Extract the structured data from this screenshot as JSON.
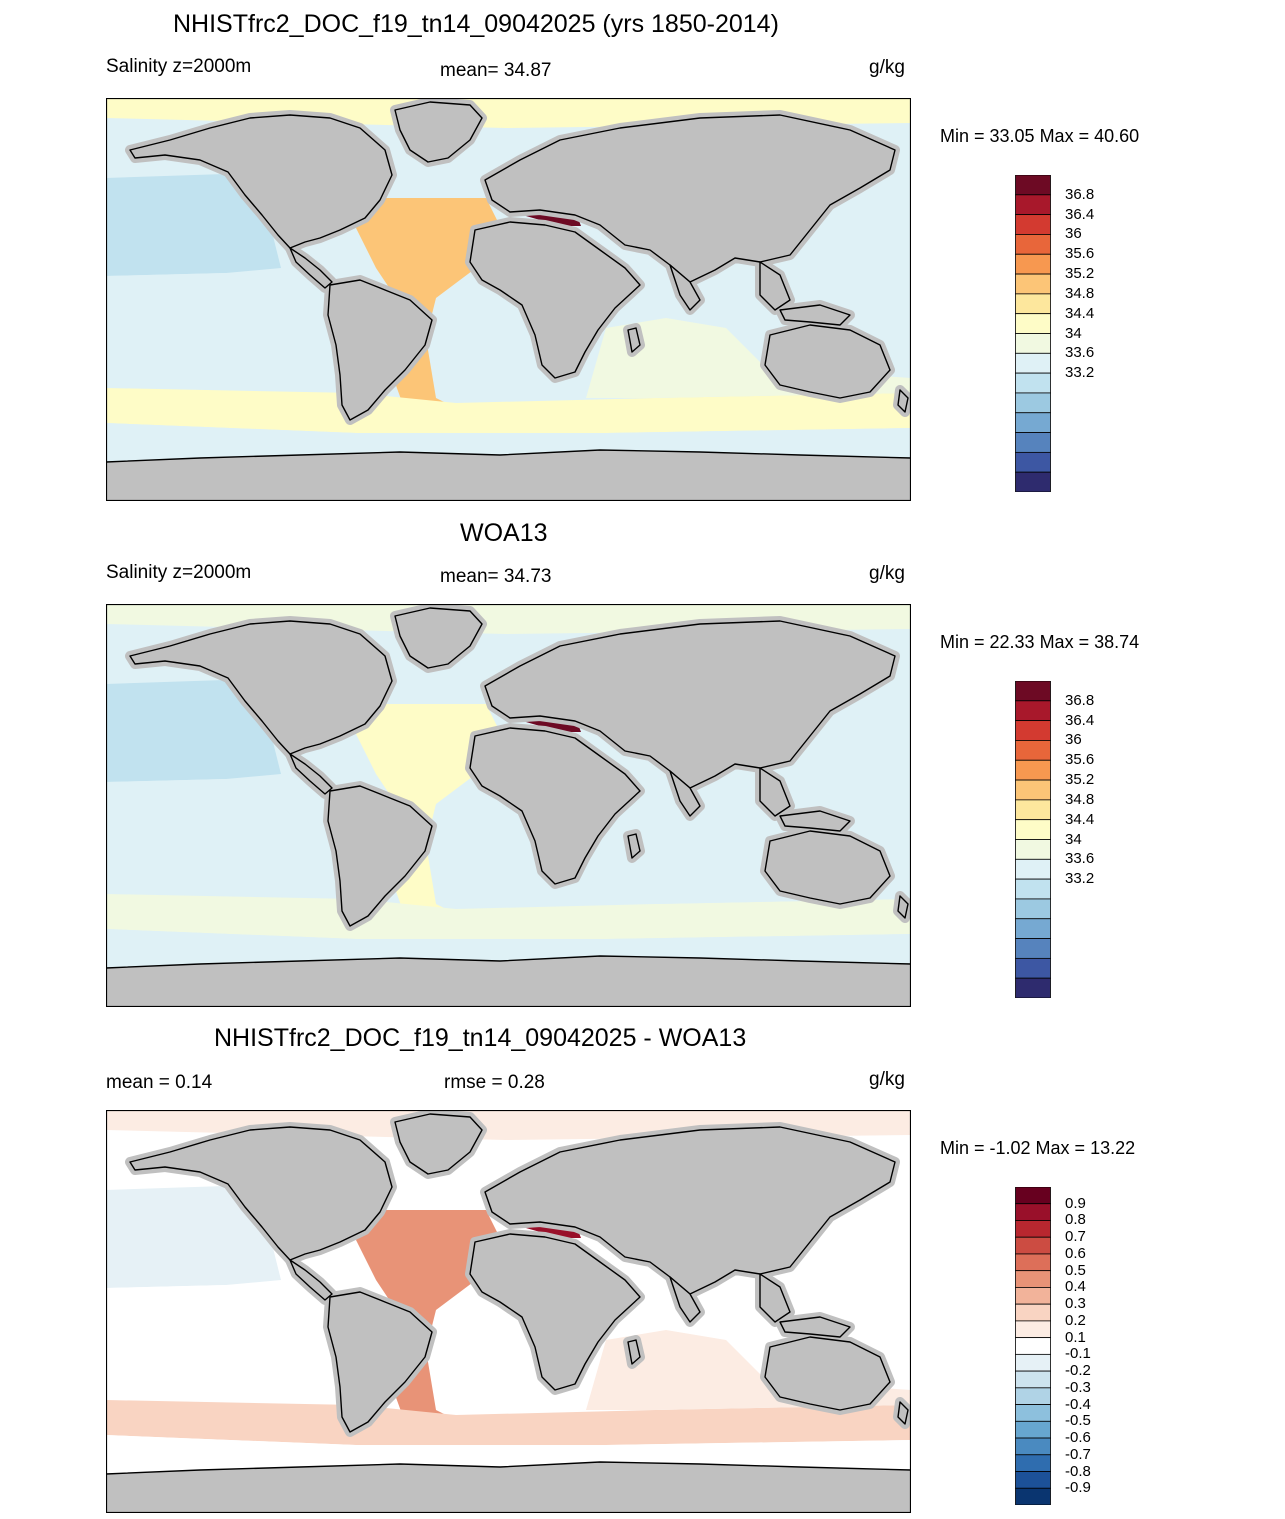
{
  "panels": [
    {
      "title": "NHISTfrc2_DOC_f19_tn14_09042025 (yrs 1850-2014)",
      "left_label": "Salinity z=2000m",
      "center_label": "mean=  34.87",
      "units": "g/kg",
      "minmax": "Min =  33.05 Max =  40.60",
      "colorbar_labels": [
        "36.8",
        "36.4",
        "36",
        "35.6",
        "35.2",
        "34.8",
        "34.4",
        "34",
        "33.6",
        "33.2"
      ],
      "colorbar_colors": [
        "#6d0a24",
        "#a8182b",
        "#d33a30",
        "#e8663a",
        "#f79850",
        "#fcc577",
        "#fde79d",
        "#fefcc7",
        "#f1f9e1",
        "#dff1f6",
        "#c1e2ef",
        "#9cc9e1",
        "#76a9d2",
        "#5683bd",
        "#3d57a3",
        "#2e2b6e"
      ],
      "ocean_base": "#dff1f6",
      "ocean_features": {
        "north_pacific": "#c1e2ef",
        "equatorial_pacific": "#dff1f6",
        "atlantic": "#fcc577",
        "mediterranean": "#6d0a24",
        "southern_band": "#fefcc7",
        "indian": "#f1f9e1",
        "antarctic": "#dff1f6",
        "arctic": "#fefcc7"
      }
    },
    {
      "title": "WOA13",
      "left_label": "Salinity z=2000m",
      "center_label": "mean=  34.73",
      "units": "g/kg",
      "minmax": "Min =  22.33 Max =  38.74",
      "colorbar_labels": [
        "36.8",
        "36.4",
        "36",
        "35.6",
        "35.2",
        "34.8",
        "34.4",
        "34",
        "33.6",
        "33.2"
      ],
      "colorbar_colors": [
        "#6d0a24",
        "#a8182b",
        "#d33a30",
        "#e8663a",
        "#f79850",
        "#fcc577",
        "#fde79d",
        "#fefcc7",
        "#f1f9e1",
        "#dff1f6",
        "#c1e2ef",
        "#9cc9e1",
        "#76a9d2",
        "#5683bd",
        "#3d57a3",
        "#2e2b6e"
      ],
      "ocean_base": "#dff1f6",
      "ocean_features": {
        "north_pacific": "#c1e2ef",
        "equatorial_pacific": "#dff1f6",
        "atlantic": "#fefcc7",
        "mediterranean": "#6d0a24",
        "southern_band": "#f1f9e1",
        "indian": "#dff1f6",
        "antarctic": "#dff1f6",
        "arctic": "#f1f9e1"
      }
    },
    {
      "title": "NHISTfrc2_DOC_f19_tn14_09042025 - WOA13",
      "left_label": "mean =   0.14",
      "center_label": "rmse =   0.28",
      "units": "g/kg",
      "minmax": "Min =  -1.02 Max =  13.22",
      "colorbar_labels": [
        "0.9",
        "0.8",
        "0.7",
        "0.6",
        "0.5",
        "0.4",
        "0.3",
        "0.2",
        "0.1",
        "-0.1",
        "-0.2",
        "-0.3",
        "-0.4",
        "-0.5",
        "-0.6",
        "-0.7",
        "-0.8",
        "-0.9"
      ],
      "colorbar_colors": [
        "#67001f",
        "#99102a",
        "#b8272f",
        "#cc4c42",
        "#dd6f59",
        "#e89377",
        "#f2b39a",
        "#f9d4c2",
        "#fcece3",
        "#ffffff",
        "#e6f1f6",
        "#cde3ee",
        "#b0d3e6",
        "#8dc0dd",
        "#67a6cf",
        "#4a8ac0",
        "#2f6daf",
        "#1c5198",
        "#0a3570"
      ],
      "ocean_base": "#ffffff",
      "ocean_features": {
        "north_pacific": "#e6f1f6",
        "equatorial_pacific": "#ffffff",
        "atlantic": "#e89377",
        "mediterranean": "#99102a",
        "southern_band": "#f9d4c2",
        "indian": "#fcece3",
        "antarctic": "#ffffff",
        "arctic": "#fcece3"
      }
    }
  ]
}
